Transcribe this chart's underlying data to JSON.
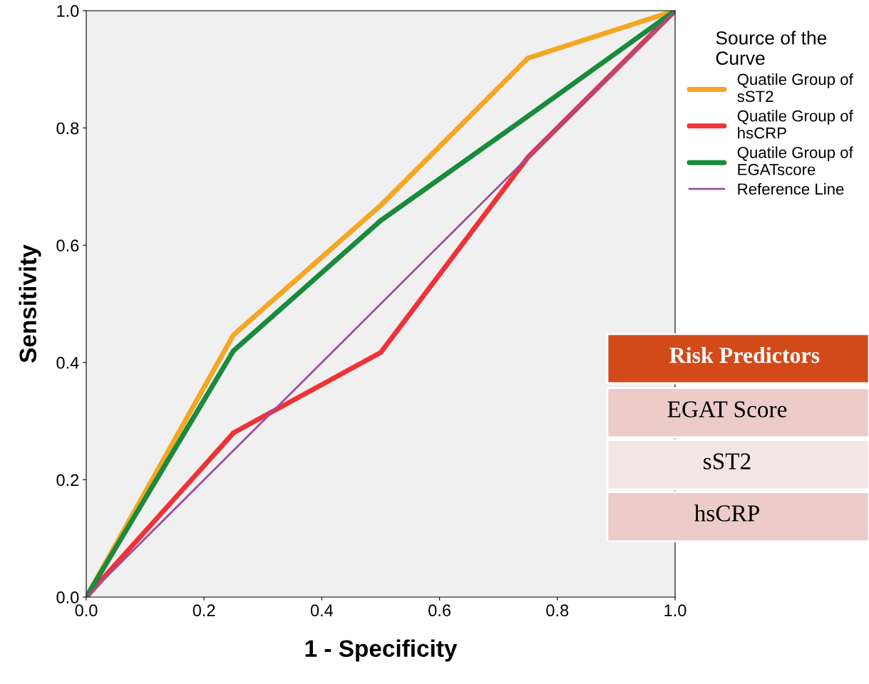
{
  "chart_data": {
    "type": "line",
    "xlabel": "1 - Specificity",
    "ylabel": "Sensitivity",
    "legend_title": "Source of the\nCurve",
    "x": [
      0.0,
      0.25,
      0.5,
      0.75,
      1.0
    ],
    "series": [
      {
        "name": "Quatile Group of\nsST2",
        "color": "#f5a623",
        "values": [
          0.0,
          0.447,
          0.668,
          0.919,
          1.0
        ]
      },
      {
        "name": "Quatile Group of\nhsCRP",
        "color": "#ee3338",
        "values": [
          0.0,
          0.28,
          0.417,
          0.75,
          1.0
        ]
      },
      {
        "name": "Quatile Group of\nEGATscore",
        "color": "#1a8a3c",
        "values": [
          0.0,
          0.42,
          0.642,
          0.82,
          1.0
        ]
      },
      {
        "name": "Reference Line",
        "color": "#9b4f9e",
        "x": [
          0.0,
          1.0
        ],
        "values": [
          0.0,
          1.0
        ]
      }
    ],
    "xlim": [
      0.0,
      1.0
    ],
    "ylim": [
      0.0,
      1.0
    ],
    "xticks": [
      {
        "value": 0,
        "label": "0.0"
      },
      0.2,
      0.4,
      0.6,
      0.8,
      {
        "value": 1,
        "label": "1.0"
      }
    ],
    "yticks": [
      {
        "value": 0,
        "label": "0.0"
      },
      0.2,
      0.4,
      0.6,
      0.8,
      {
        "value": 1,
        "label": "1.0"
      }
    ],
    "grid": false,
    "legend": "top right",
    "marker": "none",
    "line_style": "solid",
    "annotations": [
      "Risk Predictors",
      "EGAT Score",
      "sST2",
      "hsCRP"
    ]
  }
}
